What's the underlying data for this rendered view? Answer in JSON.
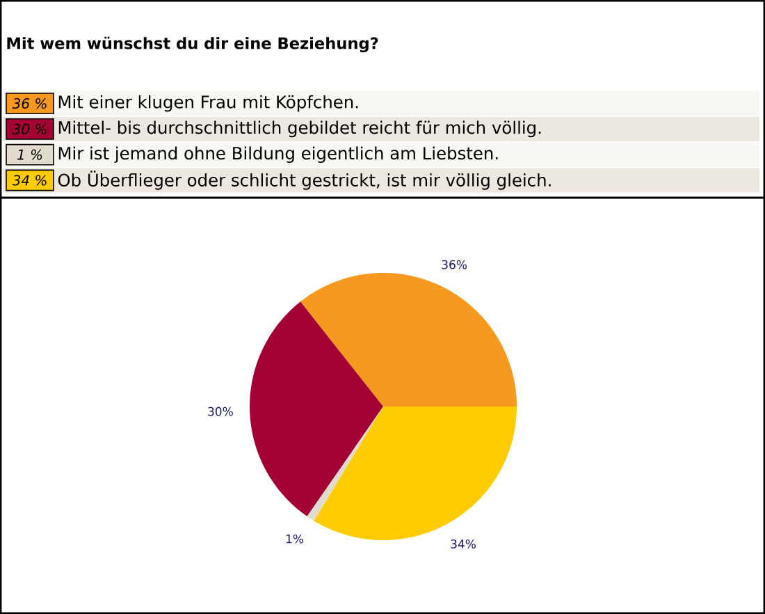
{
  "chart_data": {
    "type": "pie",
    "title": "Mit wem wünschst du dir eine Beziehung?",
    "categories": [
      "Mit einer klugen Frau mit Köpfchen.",
      "Mittel- bis durchschnittlich gebildet reicht für mich völlig.",
      "Mir ist jemand ohne Bildung eigentlich am Liebsten.",
      "Ob Überflieger oder schlicht gestrickt, ist mir völlig gleich."
    ],
    "values": [
      36,
      30,
      1,
      34
    ],
    "colors": [
      "#f7991e",
      "#a30034",
      "#e2dccf",
      "#ffcc00"
    ],
    "value_labels": [
      "36%",
      "30%",
      "1%",
      "34%"
    ],
    "annotations": [
      "36 %",
      "30 %",
      "1 %",
      "34 %"
    ],
    "legend": "top"
  }
}
